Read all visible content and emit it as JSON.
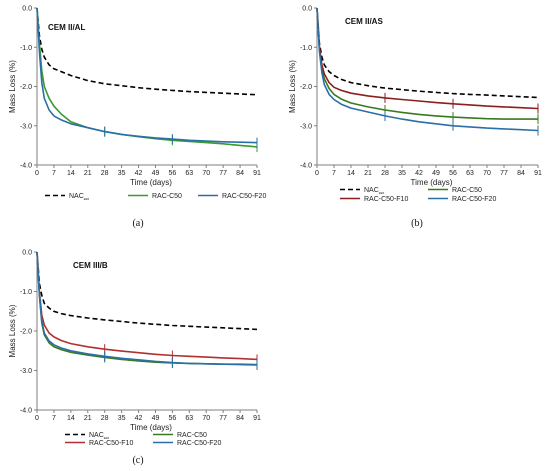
{
  "chart_data": [
    {
      "type": "line",
      "panel": "(a)",
      "title": "CEM II/AL",
      "xlabel": "Time (days)",
      "ylabel": "Mass Loss (%)",
      "xlim": [
        0,
        91
      ],
      "ylim": [
        -4.0,
        0.0
      ],
      "xticks": [
        "0",
        "7",
        "14",
        "21",
        "28",
        "35",
        "42",
        "49",
        "56",
        "63",
        "70",
        "77",
        "84",
        "91"
      ],
      "yticks": [
        "0.0",
        "-1.0",
        "-2.0",
        "-3.0",
        "-4.0"
      ],
      "series": [
        {
          "name": "NACₑₑₓ",
          "color": "#000000",
          "dash": "dashed",
          "x": [
            0,
            1,
            2,
            3,
            5,
            7,
            10,
            14,
            21,
            28,
            35,
            42,
            49,
            56,
            63,
            70,
            77,
            84,
            91
          ],
          "y": [
            0,
            -0.7,
            -1.05,
            -1.25,
            -1.45,
            -1.55,
            -1.62,
            -1.72,
            -1.85,
            -1.93,
            -1.98,
            -2.03,
            -2.07,
            -2.1,
            -2.13,
            -2.15,
            -2.17,
            -2.19,
            -2.21
          ]
        },
        {
          "name": "RAC-C50",
          "color": "#3a9a2f",
          "dash": "solid",
          "x": [
            0,
            1,
            2,
            3,
            5,
            7,
            10,
            14,
            21,
            28,
            35,
            42,
            49,
            56,
            63,
            70,
            77,
            84,
            91
          ],
          "y": [
            0,
            -0.9,
            -1.6,
            -2.0,
            -2.3,
            -2.5,
            -2.7,
            -2.9,
            -3.05,
            -3.15,
            -3.22,
            -3.28,
            -3.33,
            -3.37,
            -3.4,
            -3.43,
            -3.46,
            -3.5,
            -3.54
          ]
        },
        {
          "name": "RAC-C50-F20",
          "color": "#2a6fa8",
          "dash": "solid",
          "x": [
            0,
            1,
            2,
            3,
            5,
            7,
            10,
            14,
            21,
            28,
            35,
            42,
            49,
            56,
            63,
            70,
            77,
            84,
            91
          ],
          "y": [
            0,
            -1.1,
            -1.9,
            -2.3,
            -2.6,
            -2.75,
            -2.85,
            -2.95,
            -3.05,
            -3.15,
            -3.22,
            -3.27,
            -3.31,
            -3.34,
            -3.37,
            -3.39,
            -3.41,
            -3.42,
            -3.43
          ]
        }
      ]
    },
    {
      "type": "line",
      "panel": "(b)",
      "title": "CEM II/AS",
      "xlabel": "Time (days)",
      "ylabel": "Mass Loss (%)",
      "xlim": [
        0,
        91
      ],
      "ylim": [
        -4.0,
        0.0
      ],
      "xticks": [
        "0",
        "7",
        "14",
        "21",
        "28",
        "35",
        "42",
        "49",
        "56",
        "63",
        "70",
        "77",
        "84",
        "91"
      ],
      "yticks": [
        "0.0",
        "-1.0",
        "-2.0",
        "-3.0",
        "-4.0"
      ],
      "series": [
        {
          "name": "NACₑₑₓ",
          "color": "#000000",
          "dash": "dashed",
          "x": [
            0,
            1,
            2,
            3,
            5,
            7,
            10,
            14,
            21,
            28,
            35,
            42,
            49,
            56,
            63,
            70,
            77,
            84,
            91
          ],
          "y": [
            0,
            -0.9,
            -1.25,
            -1.45,
            -1.62,
            -1.72,
            -1.82,
            -1.9,
            -1.98,
            -2.04,
            -2.08,
            -2.12,
            -2.15,
            -2.18,
            -2.2,
            -2.22,
            -2.24,
            -2.26,
            -2.28
          ]
        },
        {
          "name": "RAC-C50",
          "color": "#3a7a1f",
          "dash": "solid",
          "x": [
            0,
            1,
            2,
            3,
            5,
            7,
            10,
            14,
            21,
            28,
            35,
            42,
            49,
            56,
            63,
            70,
            77,
            84,
            91
          ],
          "y": [
            0,
            -1.0,
            -1.55,
            -1.8,
            -2.05,
            -2.2,
            -2.32,
            -2.42,
            -2.52,
            -2.6,
            -2.66,
            -2.71,
            -2.75,
            -2.78,
            -2.8,
            -2.82,
            -2.83,
            -2.83,
            -2.83
          ]
        },
        {
          "name": "RAC-C50-F10",
          "color": "#8b1e1e",
          "dash": "solid",
          "x": [
            0,
            1,
            2,
            3,
            5,
            7,
            10,
            14,
            21,
            28,
            35,
            42,
            49,
            56,
            63,
            70,
            77,
            84,
            91
          ],
          "y": [
            0,
            -1.0,
            -1.45,
            -1.68,
            -1.9,
            -2.02,
            -2.1,
            -2.17,
            -2.24,
            -2.29,
            -2.33,
            -2.37,
            -2.41,
            -2.44,
            -2.47,
            -2.5,
            -2.52,
            -2.54,
            -2.56
          ]
        },
        {
          "name": "RAC-C50-F20",
          "color": "#2a6fa8",
          "dash": "solid",
          "x": [
            0,
            1,
            2,
            3,
            5,
            7,
            10,
            14,
            21,
            28,
            35,
            42,
            49,
            56,
            63,
            70,
            77,
            84,
            91
          ],
          "y": [
            0,
            -1.1,
            -1.65,
            -1.95,
            -2.2,
            -2.33,
            -2.45,
            -2.55,
            -2.65,
            -2.75,
            -2.83,
            -2.9,
            -2.95,
            -3.0,
            -3.03,
            -3.06,
            -3.08,
            -3.1,
            -3.12
          ]
        }
      ]
    },
    {
      "type": "line",
      "panel": "(c)",
      "title": "CEM III/B",
      "xlabel": "Time (days)",
      "ylabel": "Mass Loss (%)",
      "xlim": [
        0,
        91
      ],
      "ylim": [
        -4.0,
        0.0
      ],
      "xticks": [
        "0",
        "7",
        "14",
        "21",
        "28",
        "35",
        "42",
        "49",
        "56",
        "63",
        "70",
        "77",
        "84",
        "91"
      ],
      "yticks": [
        "0.0",
        "-1.0",
        "-2.0",
        "-3.0",
        "-4.0"
      ],
      "series": [
        {
          "name": "NACₑₑₓ",
          "color": "#000000",
          "dash": "dashed",
          "x": [
            0,
            1,
            2,
            3,
            5,
            7,
            10,
            14,
            21,
            28,
            35,
            42,
            49,
            56,
            63,
            70,
            77,
            84,
            91
          ],
          "y": [
            0,
            -0.8,
            -1.1,
            -1.3,
            -1.42,
            -1.5,
            -1.56,
            -1.61,
            -1.67,
            -1.72,
            -1.76,
            -1.8,
            -1.83,
            -1.86,
            -1.88,
            -1.9,
            -1.92,
            -1.94,
            -1.96
          ]
        },
        {
          "name": "RAC-C50",
          "color": "#3a7a1f",
          "dash": "solid",
          "x": [
            0,
            1,
            2,
            3,
            5,
            7,
            10,
            14,
            21,
            28,
            35,
            42,
            49,
            56,
            63,
            70,
            77,
            84,
            91
          ],
          "y": [
            0,
            -1.1,
            -1.8,
            -2.1,
            -2.3,
            -2.4,
            -2.47,
            -2.54,
            -2.61,
            -2.67,
            -2.72,
            -2.76,
            -2.79,
            -2.81,
            -2.82,
            -2.83,
            -2.84,
            -2.84,
            -2.85
          ]
        },
        {
          "name": "RAC-C50-F10",
          "color": "#b03030",
          "dash": "solid",
          "x": [
            0,
            1,
            2,
            3,
            5,
            7,
            10,
            14,
            21,
            28,
            35,
            42,
            49,
            56,
            63,
            70,
            77,
            84,
            91
          ],
          "y": [
            0,
            -1.0,
            -1.6,
            -1.85,
            -2.05,
            -2.15,
            -2.24,
            -2.32,
            -2.4,
            -2.46,
            -2.51,
            -2.55,
            -2.59,
            -2.62,
            -2.64,
            -2.66,
            -2.68,
            -2.7,
            -2.72
          ]
        },
        {
          "name": "RAC-C50-F20",
          "color": "#2a6fa8",
          "dash": "solid",
          "x": [
            0,
            1,
            2,
            3,
            5,
            7,
            10,
            14,
            21,
            28,
            35,
            42,
            49,
            56,
            63,
            70,
            77,
            84,
            91
          ],
          "y": [
            0,
            -1.05,
            -1.75,
            -2.05,
            -2.25,
            -2.35,
            -2.43,
            -2.5,
            -2.58,
            -2.64,
            -2.69,
            -2.73,
            -2.77,
            -2.8,
            -2.82,
            -2.83,
            -2.84,
            -2.85,
            -2.86
          ]
        }
      ]
    }
  ]
}
